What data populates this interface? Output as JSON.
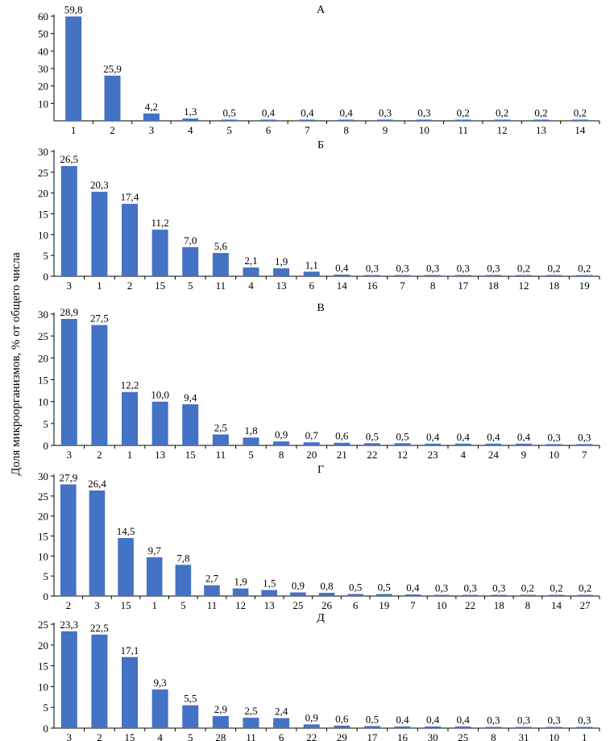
{
  "figure": {
    "ylabel": "Доля микроорганизмов, % от общего числа",
    "bar_color": "#4472c4"
  },
  "chart_data": [
    {
      "type": "bar",
      "title": "А",
      "categories": [
        "1",
        "2",
        "3",
        "4",
        "5",
        "6",
        "7",
        "8",
        "9",
        "10",
        "11",
        "12",
        "13",
        "14"
      ],
      "values": [
        59.8,
        25.9,
        4.2,
        1.3,
        0.5,
        0.4,
        0.4,
        0.4,
        0.3,
        0.3,
        0.2,
        0.2,
        0.2,
        0.2
      ],
      "value_labels": [
        "59,8",
        "25,9",
        "4,2",
        "1,3",
        "0,5",
        "0,4",
        "0,4",
        "0,4",
        "0,3",
        "0,3",
        "0,2",
        "0,2",
        "0,2",
        "0,2"
      ],
      "yticks": [
        "10",
        "20",
        "30",
        "40",
        "50",
        "60"
      ],
      "ylim": [
        0,
        60
      ]
    },
    {
      "type": "bar",
      "title": "Б",
      "categories": [
        "3",
        "1",
        "2",
        "15",
        "5",
        "11",
        "4",
        "13",
        "6",
        "14",
        "16",
        "7",
        "8",
        "17",
        "18",
        "12",
        "18",
        "19"
      ],
      "values": [
        26.5,
        20.3,
        17.4,
        11.2,
        7.0,
        5.6,
        2.1,
        1.9,
        1.1,
        0.4,
        0.3,
        0.3,
        0.3,
        0.3,
        0.3,
        0.2,
        0.2,
        0.2
      ],
      "value_labels": [
        "26,5",
        "20,3",
        "17,4",
        "11,2",
        "7,0",
        "5,6",
        "2,1",
        "1,9",
        "1,1",
        "0,4",
        "0,3",
        "0,3",
        "0,3",
        "0,3",
        "0,3",
        "0,2",
        "0,2",
        "0,2"
      ],
      "yticks": [
        "0",
        "5",
        "10",
        "15",
        "20",
        "25",
        "30"
      ],
      "ylim": [
        0,
        30
      ]
    },
    {
      "type": "bar",
      "title": "В",
      "categories": [
        "3",
        "2",
        "1",
        "13",
        "15",
        "11",
        "5",
        "8",
        "20",
        "21",
        "22",
        "12",
        "23",
        "4",
        "24",
        "9",
        "10",
        "7"
      ],
      "values": [
        28.9,
        27.5,
        12.2,
        10.0,
        9.4,
        2.5,
        1.8,
        0.9,
        0.7,
        0.6,
        0.5,
        0.5,
        0.4,
        0.4,
        0.4,
        0.4,
        0.3,
        0.3
      ],
      "value_labels": [
        "28,9",
        "27,5",
        "12,2",
        "10,0",
        "9,4",
        "2,5",
        "1,8",
        "0,9",
        "0,7",
        "0,6",
        "0,5",
        "0,5",
        "0,4",
        "0,4",
        "0,4",
        "0,4",
        "0,3",
        "0,3"
      ],
      "yticks": [
        "0",
        "5",
        "10",
        "15",
        "20",
        "25",
        "30"
      ],
      "ylim": [
        0,
        30
      ]
    },
    {
      "type": "bar",
      "title": "Г",
      "categories": [
        "2",
        "3",
        "15",
        "1",
        "5",
        "11",
        "12",
        "13",
        "25",
        "26",
        "6",
        "19",
        "7",
        "10",
        "22",
        "18",
        "8",
        "14",
        "27"
      ],
      "values": [
        27.9,
        26.4,
        14.5,
        9.7,
        7.8,
        2.7,
        1.9,
        1.5,
        0.9,
        0.8,
        0.5,
        0.5,
        0.4,
        0.3,
        0.3,
        0.3,
        0.2,
        0.2,
        0.2
      ],
      "value_labels": [
        "27,9",
        "26,4",
        "14,5",
        "9,7",
        "7,8",
        "2,7",
        "1,9",
        "1,5",
        "0,9",
        "0,8",
        "0,5",
        "0,5",
        "0,4",
        "0,3",
        "0,3",
        "0,3",
        "0,2",
        "0,2",
        "0,2"
      ],
      "yticks": [
        "0",
        "5",
        "10",
        "15",
        "20",
        "25",
        "30"
      ],
      "ylim": [
        0,
        30
      ]
    },
    {
      "type": "bar",
      "title": "Д",
      "categories": [
        "3",
        "2",
        "15",
        "4",
        "5",
        "28",
        "11",
        "6",
        "22",
        "29",
        "17",
        "16",
        "30",
        "25",
        "8",
        "31",
        "10",
        "1"
      ],
      "values": [
        23.3,
        22.5,
        17.1,
        9.3,
        5.5,
        2.9,
        2.5,
        2.4,
        0.9,
        0.6,
        0.5,
        0.4,
        0.4,
        0.4,
        0.3,
        0.3,
        0.3,
        0.3
      ],
      "value_labels": [
        "23,3",
        "22,5",
        "17,1",
        "9,3",
        "5,5",
        "2,9",
        "2,5",
        "2,4",
        "0,9",
        "0,6",
        "0,5",
        "0,4",
        "0,4",
        "0,4",
        "0,3",
        "0,3",
        "0,3",
        "0,3"
      ],
      "yticks": [
        "0",
        "5",
        "10",
        "15",
        "20",
        "25"
      ],
      "ylim": [
        0,
        25
      ]
    }
  ]
}
